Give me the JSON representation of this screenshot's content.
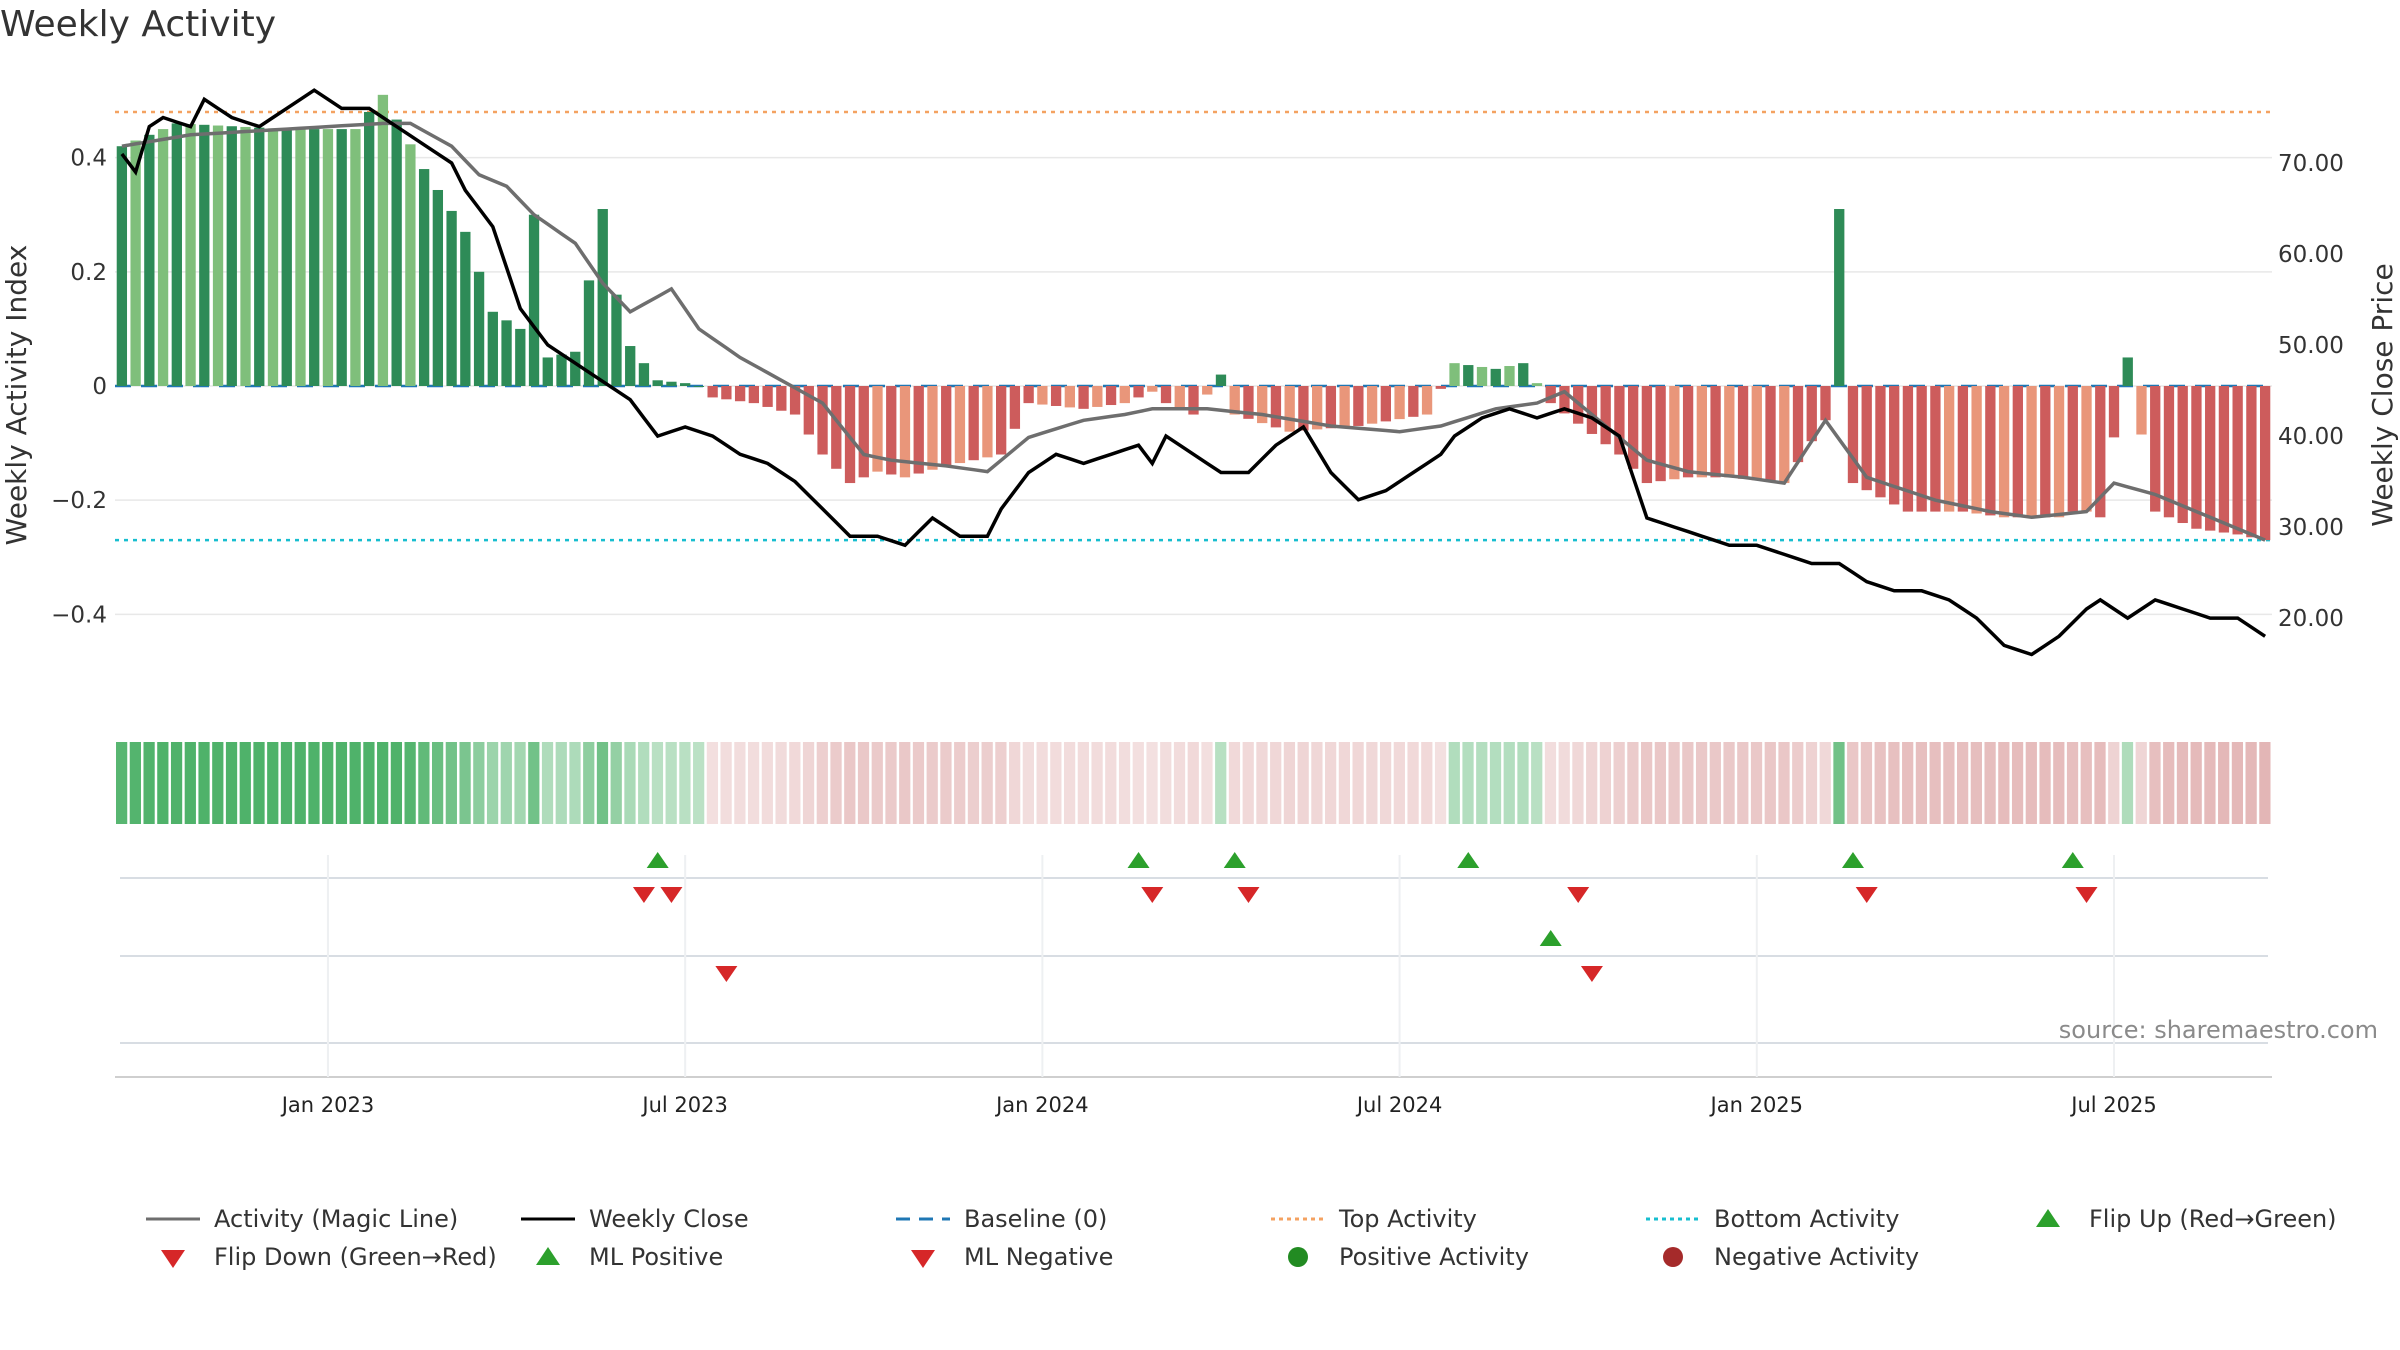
{
  "title": "Weekly Activity",
  "colors": {
    "green_dark": "#2e8b57",
    "green_light": "#7fbf7b",
    "red_dark": "#cd5c5c",
    "red_light": "#e9967a",
    "magic_line": "#6e6e6e",
    "close_line": "#000000",
    "baseline": "#1f77b4",
    "top_activity": "#f4a261",
    "bottom_activity": "#17becf",
    "marker_up": "#2ca02c",
    "marker_down": "#d62728",
    "pos_dot": "#228b22",
    "neg_dot": "#a52a2a"
  },
  "chart_data": {
    "type": "bar+line",
    "title": "Weekly Activity",
    "ylabel_left": "Weekly Activity Index",
    "ylabel_right": "Weekly Close Price",
    "ylim_left": [
      -0.55,
      0.55
    ],
    "ylim_right": [
      11,
      80
    ],
    "left_ticks": [
      0.4,
      0.2,
      0,
      -0.2,
      -0.4
    ],
    "left_tick_labels": [
      "0.4",
      "0.2",
      "0",
      "−0.2",
      "−0.4"
    ],
    "right_ticks": [
      70,
      60,
      50,
      40,
      30,
      20
    ],
    "right_tick_labels": [
      "70.00",
      "60.00",
      "50.00",
      "40.00",
      "30.00",
      "20.00"
    ],
    "x_ticks": [
      {
        "label": "Jan 2023",
        "week": 15
      },
      {
        "label": "Jul 2023",
        "week": 41
      },
      {
        "label": "Jan 2024",
        "week": 67
      },
      {
        "label": "Jul 2024",
        "week": 93
      },
      {
        "label": "Jan 2025",
        "week": 119
      },
      {
        "label": "Jul 2025",
        "week": 145
      }
    ],
    "weeks": 157,
    "top_activity": 0.48,
    "bottom_activity": -0.27,
    "baseline": 0,
    "activity_keypoints": [
      [
        0,
        0.42
      ],
      [
        4,
        0.46
      ],
      [
        12,
        0.45
      ],
      [
        17,
        0.45
      ],
      [
        19,
        0.51
      ],
      [
        22,
        0.38
      ],
      [
        25,
        0.27
      ],
      [
        27,
        0.13
      ],
      [
        29,
        0.1
      ],
      [
        30,
        0.3
      ],
      [
        31,
        0.05
      ],
      [
        33,
        0.06
      ],
      [
        35,
        0.31
      ],
      [
        36,
        0.16
      ],
      [
        37,
        0.07
      ],
      [
        39,
        0.01
      ],
      [
        41,
        0.005
      ],
      [
        42,
        0.0
      ],
      [
        43,
        -0.02
      ],
      [
        46,
        -0.03
      ],
      [
        49,
        -0.05
      ],
      [
        51,
        -0.12
      ],
      [
        53,
        -0.17
      ],
      [
        55,
        -0.15
      ],
      [
        57,
        -0.16
      ],
      [
        60,
        -0.14
      ],
      [
        64,
        -0.12
      ],
      [
        66,
        -0.03
      ],
      [
        70,
        -0.04
      ],
      [
        73,
        -0.03
      ],
      [
        75,
        -0.01
      ],
      [
        76,
        -0.03
      ],
      [
        78,
        -0.05
      ],
      [
        80,
        0.02
      ],
      [
        81,
        -0.05
      ],
      [
        85,
        -0.08
      ],
      [
        90,
        -0.07
      ],
      [
        95,
        -0.05
      ],
      [
        97,
        0.04
      ],
      [
        100,
        0.03
      ],
      [
        102,
        0.04
      ],
      [
        104,
        -0.03
      ],
      [
        109,
        -0.12
      ],
      [
        111,
        -0.17
      ],
      [
        114,
        -0.16
      ],
      [
        117,
        -0.16
      ],
      [
        121,
        -0.17
      ],
      [
        124,
        -0.06
      ],
      [
        125,
        0.31
      ],
      [
        126,
        -0.17
      ],
      [
        130,
        -0.22
      ],
      [
        134,
        -0.22
      ],
      [
        137,
        -0.23
      ],
      [
        139,
        -0.23
      ],
      [
        141,
        -0.23
      ],
      [
        142,
        -0.22
      ],
      [
        143,
        -0.22
      ],
      [
        144,
        -0.23
      ],
      [
        146,
        0.05
      ],
      [
        148,
        -0.22
      ],
      [
        151,
        -0.25
      ],
      [
        154,
        -0.26
      ],
      [
        156,
        -0.27
      ]
    ],
    "magic_line_keypoints": [
      [
        0,
        0.42
      ],
      [
        5,
        0.44
      ],
      [
        12,
        0.45
      ],
      [
        19,
        0.46
      ],
      [
        21,
        0.46
      ],
      [
        24,
        0.42
      ],
      [
        26,
        0.37
      ],
      [
        27,
        0.36
      ],
      [
        28,
        0.35
      ],
      [
        30,
        0.3
      ],
      [
        33,
        0.25
      ],
      [
        35,
        0.18
      ],
      [
        37,
        0.13
      ],
      [
        40,
        0.17
      ],
      [
        42,
        0.1
      ],
      [
        45,
        0.05
      ],
      [
        48,
        0.01
      ],
      [
        51,
        -0.03
      ],
      [
        54,
        -0.12
      ],
      [
        56,
        -0.13
      ],
      [
        60,
        -0.14
      ],
      [
        63,
        -0.15
      ],
      [
        66,
        -0.09
      ],
      [
        70,
        -0.06
      ],
      [
        73,
        -0.05
      ],
      [
        75,
        -0.04
      ],
      [
        79,
        -0.04
      ],
      [
        83,
        -0.05
      ],
      [
        88,
        -0.07
      ],
      [
        93,
        -0.08
      ],
      [
        96,
        -0.07
      ],
      [
        100,
        -0.04
      ],
      [
        103,
        -0.03
      ],
      [
        105,
        -0.01
      ],
      [
        108,
        -0.07
      ],
      [
        111,
        -0.13
      ],
      [
        114,
        -0.15
      ],
      [
        118,
        -0.16
      ],
      [
        121,
        -0.17
      ],
      [
        124,
        -0.06
      ],
      [
        127,
        -0.16
      ],
      [
        132,
        -0.2
      ],
      [
        136,
        -0.22
      ],
      [
        139,
        -0.23
      ],
      [
        143,
        -0.22
      ],
      [
        145,
        -0.17
      ],
      [
        148,
        -0.19
      ],
      [
        152,
        -0.23
      ],
      [
        156,
        -0.27
      ]
    ],
    "close_keypoints": [
      [
        0,
        71
      ],
      [
        1,
        69
      ],
      [
        2,
        74
      ],
      [
        3,
        75
      ],
      [
        5,
        74
      ],
      [
        6,
        77
      ],
      [
        8,
        75
      ],
      [
        10,
        74
      ],
      [
        12,
        76
      ],
      [
        14,
        78
      ],
      [
        16,
        76
      ],
      [
        18,
        76
      ],
      [
        20,
        74
      ],
      [
        22,
        72
      ],
      [
        24,
        70
      ],
      [
        25,
        67
      ],
      [
        27,
        63
      ],
      [
        29,
        54
      ],
      [
        31,
        50
      ],
      [
        33,
        48
      ],
      [
        35,
        46
      ],
      [
        37,
        44
      ],
      [
        39,
        40
      ],
      [
        41,
        41
      ],
      [
        43,
        40
      ],
      [
        45,
        38
      ],
      [
        47,
        37
      ],
      [
        49,
        35
      ],
      [
        51,
        32
      ],
      [
        53,
        29
      ],
      [
        55,
        29
      ],
      [
        57,
        28
      ],
      [
        59,
        31
      ],
      [
        61,
        29
      ],
      [
        63,
        29
      ],
      [
        64,
        32
      ],
      [
        66,
        36
      ],
      [
        68,
        38
      ],
      [
        70,
        37
      ],
      [
        72,
        38
      ],
      [
        74,
        39
      ],
      [
        75,
        37
      ],
      [
        76,
        40
      ],
      [
        78,
        38
      ],
      [
        80,
        36
      ],
      [
        82,
        36
      ],
      [
        84,
        39
      ],
      [
        86,
        41
      ],
      [
        88,
        36
      ],
      [
        90,
        33
      ],
      [
        92,
        34
      ],
      [
        94,
        36
      ],
      [
        96,
        38
      ],
      [
        97,
        40
      ],
      [
        99,
        42
      ],
      [
        101,
        43
      ],
      [
        103,
        42
      ],
      [
        105,
        43
      ],
      [
        107,
        42
      ],
      [
        109,
        40
      ],
      [
        111,
        31
      ],
      [
        113,
        30
      ],
      [
        115,
        29
      ],
      [
        117,
        28
      ],
      [
        119,
        28
      ],
      [
        121,
        27
      ],
      [
        123,
        26
      ],
      [
        125,
        26
      ],
      [
        127,
        24
      ],
      [
        129,
        23
      ],
      [
        131,
        23
      ],
      [
        133,
        22
      ],
      [
        135,
        20
      ],
      [
        137,
        17
      ],
      [
        139,
        16
      ],
      [
        141,
        18
      ],
      [
        143,
        21
      ],
      [
        144,
        22
      ],
      [
        146,
        20
      ],
      [
        148,
        22
      ],
      [
        150,
        21
      ],
      [
        152,
        20
      ],
      [
        154,
        20
      ],
      [
        156,
        18
      ]
    ],
    "flip_up_row1": [
      39,
      74,
      81,
      98,
      126,
      142
    ],
    "flip_down_row1": [
      38,
      40,
      75,
      82,
      106,
      127,
      143
    ],
    "ml_positive_row2": [
      104
    ],
    "ml_negative_row2": [
      44,
      107
    ]
  },
  "legend": [
    [
      "Activity (Magic Line)",
      "Weekly Close",
      "Baseline (0)",
      "Top Activity",
      "Bottom Activity",
      "Flip Up (Red→Green)"
    ],
    [
      "Flip Down (Green→Red)",
      "ML Positive",
      "ML Negative",
      "Positive Activity",
      "Negative Activity"
    ]
  ],
  "source": "source: sharemaestro.com"
}
